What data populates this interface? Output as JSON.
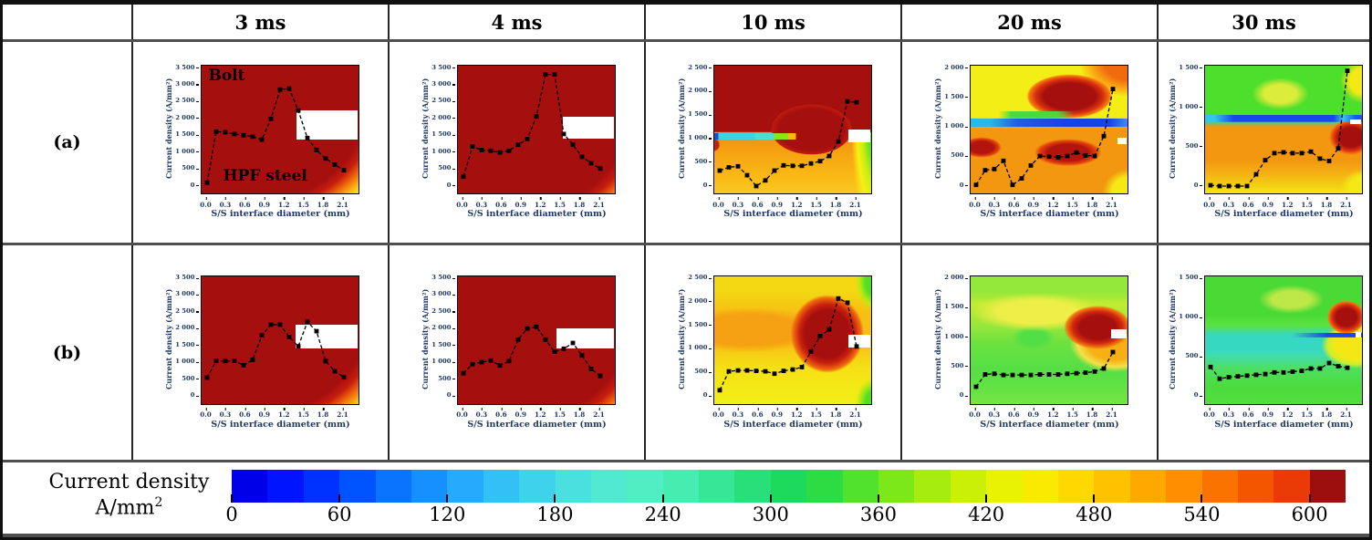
{
  "header": {
    "corner": "",
    "columns": [
      "3 ms",
      "4 ms",
      "10 ms",
      "20 ms",
      "30 ms"
    ]
  },
  "rows": [
    {
      "label": "(a)"
    },
    {
      "label": "(b)"
    }
  ],
  "axis": {
    "ylabel": "Current density (A/mm²)",
    "xlabel": "S/S interface diameter (mm)",
    "xticks": [
      "0.0",
      "0.3",
      "0.6",
      "0.9",
      "1.2",
      "1.5",
      "1.8",
      "2.1"
    ],
    "xmax": 2.1
  },
  "annotations": {
    "top": "Bolt",
    "bottom": "HPF steel"
  },
  "colorbar": {
    "label_line1": "Current density",
    "label_line2": "A/mm",
    "label_sup": "2",
    "ticks": [
      0,
      60,
      120,
      180,
      240,
      300,
      360,
      420,
      480,
      540,
      600
    ],
    "segment_step": 20,
    "segment_colors": [
      "#0000e8",
      "#0014ff",
      "#0032ff",
      "#0054ff",
      "#0a74ff",
      "#1790ff",
      "#25aafe",
      "#33c0f6",
      "#3fd2ec",
      "#4ae0df",
      "#51ead1",
      "#50eec2",
      "#47ecb0",
      "#38e698",
      "#28df7a",
      "#1eda5c",
      "#2cdc42",
      "#50e22c",
      "#7ce81a",
      "#a6ec0e",
      "#caf007",
      "#e9f202",
      "#fae900",
      "#ffd800",
      "#ffc100",
      "#ffa800",
      "#ff8f00",
      "#fa7300",
      "#f45600",
      "#ea3a05",
      "#9d0f0f"
    ]
  },
  "chart_data": [
    {
      "id": "a-3",
      "panel": "(a)",
      "time": "3 ms",
      "type": "line",
      "ylim": [
        0,
        3500
      ],
      "yticks": [
        0,
        500,
        1000,
        1500,
        2000,
        2500,
        3000,
        3500
      ],
      "x": [
        0,
        0.14,
        0.28,
        0.42,
        0.56,
        0.7,
        0.84,
        0.98,
        1.12,
        1.26,
        1.4,
        1.54,
        1.68,
        1.82,
        1.96,
        2.1
      ],
      "values": [
        100,
        1620,
        1600,
        1550,
        1510,
        1470,
        1380,
        2000,
        2870,
        2900,
        2250,
        1430,
        1070,
        820,
        640,
        470
      ],
      "has_annotations": true
    },
    {
      "id": "a-4",
      "panel": "(a)",
      "time": "4 ms",
      "type": "line",
      "ylim": [
        0,
        3500
      ],
      "yticks": [
        0,
        500,
        1000,
        1500,
        2000,
        2500,
        3000,
        3500
      ],
      "x": [
        0,
        0.14,
        0.28,
        0.42,
        0.56,
        0.7,
        0.84,
        0.98,
        1.12,
        1.26,
        1.4,
        1.54,
        1.68,
        1.82,
        1.96,
        2.1
      ],
      "values": [
        280,
        1180,
        1070,
        1050,
        1000,
        1050,
        1230,
        1400,
        2070,
        3320,
        3320,
        1550,
        1230,
        870,
        680,
        520
      ]
    },
    {
      "id": "a-10",
      "panel": "(a)",
      "time": "10 ms",
      "type": "line",
      "ylim": [
        0,
        2500
      ],
      "yticks": [
        0,
        500,
        1000,
        1500,
        2000,
        2500
      ],
      "x": [
        0,
        0.14,
        0.28,
        0.42,
        0.56,
        0.7,
        0.84,
        0.98,
        1.12,
        1.26,
        1.4,
        1.54,
        1.68,
        1.82,
        1.96,
        2.1
      ],
      "values": [
        330,
        400,
        420,
        230,
        0,
        120,
        330,
        440,
        430,
        430,
        480,
        530,
        640,
        950,
        1800,
        1780
      ]
    },
    {
      "id": "a-20",
      "panel": "(a)",
      "time": "20 ms",
      "type": "line",
      "ylim": [
        0,
        2000
      ],
      "yticks": [
        0,
        500,
        1000,
        1500,
        2000
      ],
      "x": [
        0,
        0.14,
        0.28,
        0.42,
        0.56,
        0.7,
        0.84,
        0.98,
        1.12,
        1.26,
        1.4,
        1.54,
        1.68,
        1.82,
        1.96,
        2.1
      ],
      "values": [
        20,
        270,
        290,
        430,
        20,
        130,
        350,
        510,
        500,
        490,
        510,
        570,
        520,
        510,
        850,
        1650
      ]
    },
    {
      "id": "a-30",
      "panel": "(a)",
      "time": "30 ms",
      "type": "line",
      "ylim": [
        0,
        1500
      ],
      "yticks": [
        0,
        500,
        1000,
        1500
      ],
      "x": [
        0,
        0.14,
        0.28,
        0.42,
        0.56,
        0.7,
        0.84,
        0.98,
        1.12,
        1.26,
        1.4,
        1.54,
        1.68,
        1.82,
        1.96,
        2.1
      ],
      "values": [
        10,
        0,
        0,
        0,
        0,
        150,
        330,
        420,
        430,
        420,
        420,
        440,
        350,
        320,
        480,
        1470
      ]
    },
    {
      "id": "b-3",
      "panel": "(b)",
      "time": "3 ms",
      "type": "line",
      "ylim": [
        0,
        3500
      ],
      "yticks": [
        0,
        500,
        1000,
        1500,
        2000,
        2500,
        3000,
        3500
      ],
      "x": [
        0,
        0.14,
        0.28,
        0.42,
        0.56,
        0.7,
        0.84,
        0.98,
        1.12,
        1.26,
        1.4,
        1.54,
        1.68,
        1.82,
        1.96,
        2.1
      ],
      "values": [
        570,
        1070,
        1060,
        1070,
        940,
        1100,
        1830,
        2150,
        2150,
        1780,
        1500,
        2230,
        1950,
        1060,
        760,
        580
      ]
    },
    {
      "id": "b-4",
      "panel": "(b)",
      "time": "4 ms",
      "type": "line",
      "ylim": [
        0,
        3500
      ],
      "yticks": [
        0,
        500,
        1000,
        1500,
        2000,
        2500,
        3000,
        3500
      ],
      "x": [
        0,
        0.14,
        0.28,
        0.42,
        0.56,
        0.7,
        0.84,
        0.98,
        1.12,
        1.26,
        1.4,
        1.54,
        1.68,
        1.82,
        1.96,
        2.1
      ],
      "values": [
        700,
        970,
        1030,
        1080,
        930,
        1060,
        1700,
        2030,
        2080,
        1700,
        1340,
        1430,
        1600,
        1230,
        830,
        620
      ]
    },
    {
      "id": "b-10",
      "panel": "(b)",
      "time": "10 ms",
      "type": "line",
      "ylim": [
        0,
        2500
      ],
      "yticks": [
        0,
        500,
        1000,
        1500,
        2000,
        2500
      ],
      "x": [
        0,
        0.14,
        0.28,
        0.42,
        0.56,
        0.7,
        0.84,
        0.98,
        1.12,
        1.26,
        1.4,
        1.54,
        1.68,
        1.82,
        1.96,
        2.1
      ],
      "values": [
        140,
        540,
        560,
        560,
        550,
        540,
        490,
        550,
        580,
        630,
        960,
        1290,
        1430,
        2090,
        2000,
        1070
      ]
    },
    {
      "id": "b-20",
      "panel": "(b)",
      "time": "20 ms",
      "type": "line",
      "ylim": [
        0,
        2000
      ],
      "yticks": [
        0,
        500,
        1000,
        1500,
        2000
      ],
      "x": [
        0,
        0.14,
        0.28,
        0.42,
        0.56,
        0.7,
        0.84,
        0.98,
        1.12,
        1.26,
        1.4,
        1.54,
        1.68,
        1.82,
        1.96,
        2.1
      ],
      "values": [
        170,
        380,
        390,
        370,
        370,
        370,
        370,
        380,
        380,
        380,
        390,
        400,
        410,
        430,
        480,
        760
      ]
    },
    {
      "id": "b-30",
      "panel": "(b)",
      "time": "30 ms",
      "type": "line",
      "ylim": [
        0,
        1500
      ],
      "yticks": [
        0,
        500,
        1000,
        1500
      ],
      "x": [
        0,
        0.14,
        0.28,
        0.42,
        0.56,
        0.7,
        0.84,
        0.98,
        1.12,
        1.26,
        1.4,
        1.54,
        1.68,
        1.82,
        1.96,
        2.1
      ],
      "values": [
        380,
        230,
        250,
        260,
        270,
        280,
        290,
        310,
        310,
        320,
        330,
        360,
        360,
        430,
        390,
        370
      ]
    }
  ]
}
